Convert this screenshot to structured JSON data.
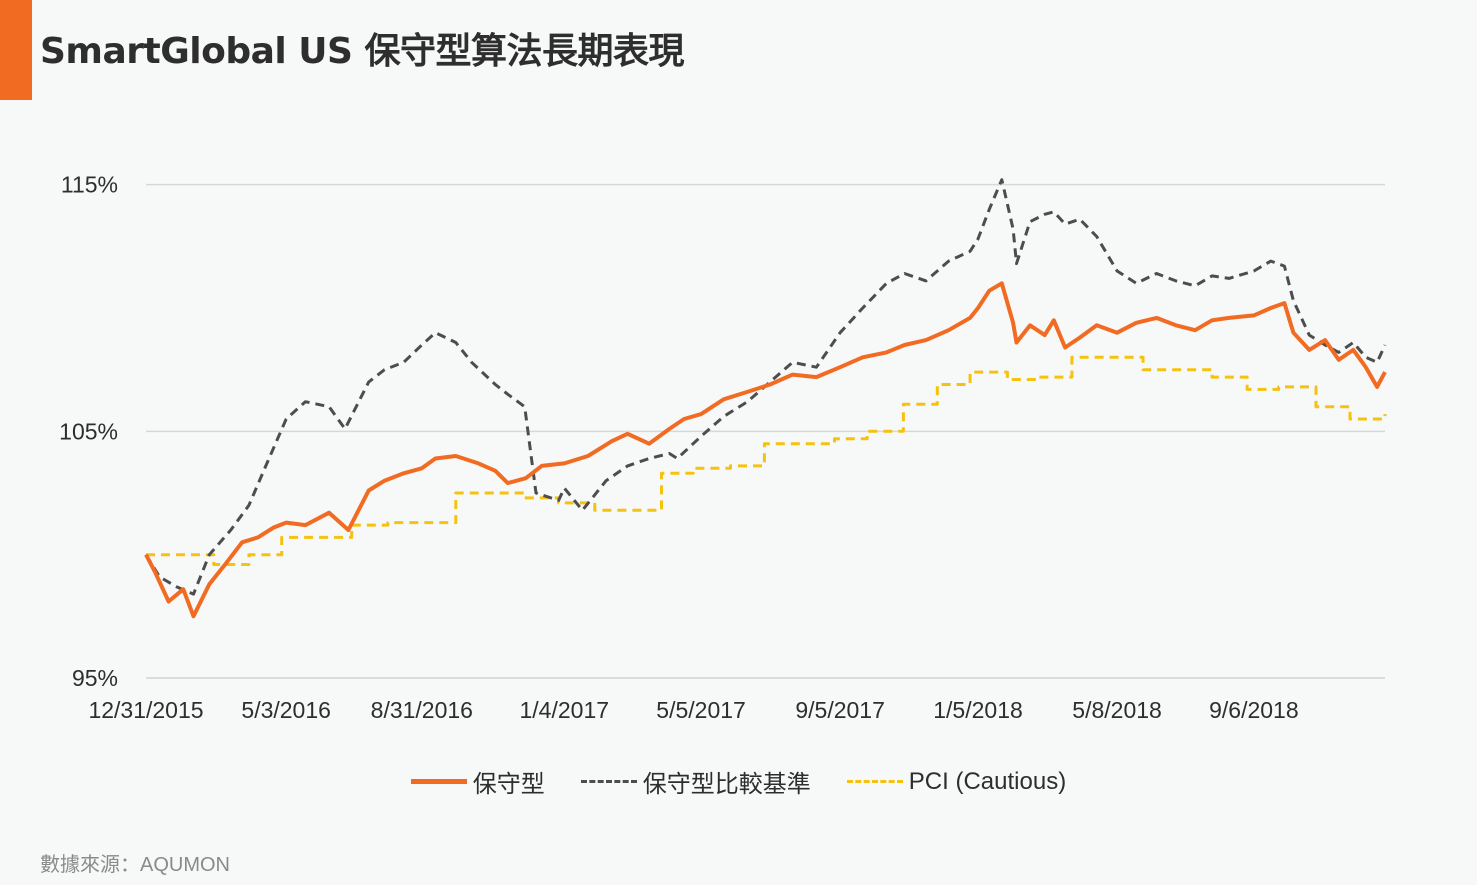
{
  "title": "SmartGlobal US 保守型算法長期表現",
  "source": "數據來源：AQUMON",
  "colors": {
    "accent": "#f26b22",
    "grid": "#d6d9dc",
    "text": "#2e2e2e"
  },
  "chart_data": {
    "type": "line",
    "title": "SmartGlobal US 保守型算法長期表現",
    "xlabel": "",
    "ylabel": "",
    "y_tick_labels": [
      "95%",
      "105%",
      "115%"
    ],
    "y_ticks": [
      95,
      105,
      115
    ],
    "ylim": [
      95,
      116
    ],
    "x_tick_labels": [
      "12/31/2015",
      "5/3/2016",
      "8/31/2016",
      "1/4/2017",
      "5/5/2017",
      "9/5/2017",
      "1/5/2018",
      "5/8/2018",
      "9/6/2018"
    ],
    "x_ticks": [
      "2015-12-31",
      "2016-05-03",
      "2016-08-31",
      "2017-01-04",
      "2017-05-05",
      "2017-09-05",
      "2018-01-05",
      "2018-05-08",
      "2018-09-06"
    ],
    "xlim": [
      "2015-12-31",
      "2018-12-31"
    ],
    "grid": true,
    "legend_position": "bottom",
    "series": [
      {
        "name": "保守型",
        "color": "#f26b22",
        "style": "solid",
        "points": [
          [
            "2015-12-31",
            100.0
          ],
          [
            "2016-01-08",
            99.3
          ],
          [
            "2016-01-20",
            98.1
          ],
          [
            "2016-02-02",
            98.6
          ],
          [
            "2016-02-11",
            97.5
          ],
          [
            "2016-02-25",
            98.8
          ],
          [
            "2016-03-10",
            99.6
          ],
          [
            "2016-03-25",
            100.5
          ],
          [
            "2016-04-08",
            100.7
          ],
          [
            "2016-04-22",
            101.1
          ],
          [
            "2016-05-03",
            101.3
          ],
          [
            "2016-05-20",
            101.2
          ],
          [
            "2016-06-10",
            101.7
          ],
          [
            "2016-06-27",
            101.0
          ],
          [
            "2016-07-15",
            102.6
          ],
          [
            "2016-07-29",
            103.0
          ],
          [
            "2016-08-15",
            103.3
          ],
          [
            "2016-08-31",
            103.5
          ],
          [
            "2016-09-12",
            103.9
          ],
          [
            "2016-09-30",
            104.0
          ],
          [
            "2016-10-20",
            103.7
          ],
          [
            "2016-11-04",
            103.4
          ],
          [
            "2016-11-15",
            102.9
          ],
          [
            "2016-12-01",
            103.1
          ],
          [
            "2016-12-15",
            103.6
          ],
          [
            "2017-01-04",
            103.7
          ],
          [
            "2017-01-25",
            104.0
          ],
          [
            "2017-02-15",
            104.6
          ],
          [
            "2017-03-01",
            104.9
          ],
          [
            "2017-03-20",
            104.5
          ],
          [
            "2017-04-07",
            105.1
          ],
          [
            "2017-04-20",
            105.5
          ],
          [
            "2017-05-05",
            105.7
          ],
          [
            "2017-05-25",
            106.3
          ],
          [
            "2017-06-15",
            106.6
          ],
          [
            "2017-07-05",
            106.9
          ],
          [
            "2017-07-25",
            107.3
          ],
          [
            "2017-08-15",
            107.2
          ],
          [
            "2017-09-05",
            107.6
          ],
          [
            "2017-09-25",
            108.0
          ],
          [
            "2017-10-16",
            108.2
          ],
          [
            "2017-11-01",
            108.5
          ],
          [
            "2017-11-20",
            108.7
          ],
          [
            "2017-12-10",
            109.1
          ],
          [
            "2017-12-29",
            109.6
          ],
          [
            "2018-01-05",
            110.0
          ],
          [
            "2018-01-15",
            110.7
          ],
          [
            "2018-01-26",
            111.0
          ],
          [
            "2018-02-05",
            109.4
          ],
          [
            "2018-02-08",
            108.6
          ],
          [
            "2018-02-20",
            109.3
          ],
          [
            "2018-03-05",
            108.9
          ],
          [
            "2018-03-13",
            109.5
          ],
          [
            "2018-03-23",
            108.4
          ],
          [
            "2018-04-05",
            108.8
          ],
          [
            "2018-04-20",
            109.3
          ],
          [
            "2018-05-08",
            109.0
          ],
          [
            "2018-05-25",
            109.4
          ],
          [
            "2018-06-12",
            109.6
          ],
          [
            "2018-06-29",
            109.3
          ],
          [
            "2018-07-16",
            109.1
          ],
          [
            "2018-07-31",
            109.5
          ],
          [
            "2018-08-15",
            109.6
          ],
          [
            "2018-09-06",
            109.7
          ],
          [
            "2018-09-21",
            110.0
          ],
          [
            "2018-10-03",
            110.2
          ],
          [
            "2018-10-11",
            109.0
          ],
          [
            "2018-10-25",
            108.3
          ],
          [
            "2018-11-08",
            108.7
          ],
          [
            "2018-11-20",
            107.9
          ],
          [
            "2018-12-03",
            108.3
          ],
          [
            "2018-12-14",
            107.6
          ],
          [
            "2018-12-24",
            106.8
          ],
          [
            "2018-12-31",
            107.4
          ]
        ]
      },
      {
        "name": "保守型比較基準",
        "color": "#4d4d4d",
        "style": "dashed",
        "points": [
          [
            "2015-12-31",
            100.0
          ],
          [
            "2016-01-12",
            99.1
          ],
          [
            "2016-01-27",
            98.7
          ],
          [
            "2016-02-11",
            98.4
          ],
          [
            "2016-02-25",
            100.0
          ],
          [
            "2016-03-15",
            101.0
          ],
          [
            "2016-03-31",
            102.0
          ],
          [
            "2016-04-15",
            103.6
          ],
          [
            "2016-05-03",
            105.5
          ],
          [
            "2016-05-20",
            106.2
          ],
          [
            "2016-06-10",
            106.0
          ],
          [
            "2016-06-24",
            105.1
          ],
          [
            "2016-07-15",
            107.0
          ],
          [
            "2016-07-29",
            107.5
          ],
          [
            "2016-08-15",
            107.8
          ],
          [
            "2016-08-31",
            108.5
          ],
          [
            "2016-09-12",
            109.0
          ],
          [
            "2016-09-30",
            108.6
          ],
          [
            "2016-10-14",
            107.8
          ],
          [
            "2016-11-04",
            106.9
          ],
          [
            "2016-11-15",
            106.5
          ],
          [
            "2016-11-30",
            106.0
          ],
          [
            "2016-12-10",
            102.5
          ],
          [
            "2016-12-30",
            102.2
          ],
          [
            "2017-01-04",
            102.7
          ],
          [
            "2017-01-20",
            101.8
          ],
          [
            "2017-02-10",
            103.0
          ],
          [
            "2017-03-01",
            103.6
          ],
          [
            "2017-03-20",
            103.9
          ],
          [
            "2017-04-07",
            104.1
          ],
          [
            "2017-04-14",
            103.9
          ],
          [
            "2017-05-05",
            104.8
          ],
          [
            "2017-05-25",
            105.6
          ],
          [
            "2017-06-15",
            106.2
          ],
          [
            "2017-07-05",
            107.0
          ],
          [
            "2017-07-25",
            107.8
          ],
          [
            "2017-08-15",
            107.6
          ],
          [
            "2017-09-05",
            109.0
          ],
          [
            "2017-09-25",
            110.0
          ],
          [
            "2017-10-16",
            111.0
          ],
          [
            "2017-11-01",
            111.4
          ],
          [
            "2017-11-20",
            111.1
          ],
          [
            "2017-12-10",
            111.9
          ],
          [
            "2017-12-29",
            112.3
          ],
          [
            "2018-01-05",
            112.8
          ],
          [
            "2018-01-15",
            114.0
          ],
          [
            "2018-01-26",
            115.2
          ],
          [
            "2018-02-05",
            113.2
          ],
          [
            "2018-02-08",
            111.8
          ],
          [
            "2018-02-20",
            113.5
          ],
          [
            "2018-03-05",
            113.8
          ],
          [
            "2018-03-13",
            113.9
          ],
          [
            "2018-03-23",
            113.4
          ],
          [
            "2018-04-05",
            113.6
          ],
          [
            "2018-04-20",
            112.9
          ],
          [
            "2018-05-08",
            111.5
          ],
          [
            "2018-05-25",
            111.0
          ],
          [
            "2018-06-12",
            111.4
          ],
          [
            "2018-06-29",
            111.1
          ],
          [
            "2018-07-16",
            110.9
          ],
          [
            "2018-07-31",
            111.3
          ],
          [
            "2018-08-15",
            111.2
          ],
          [
            "2018-09-06",
            111.5
          ],
          [
            "2018-09-21",
            111.9
          ],
          [
            "2018-10-03",
            111.7
          ],
          [
            "2018-10-11",
            110.3
          ],
          [
            "2018-10-25",
            108.9
          ],
          [
            "2018-11-08",
            108.5
          ],
          [
            "2018-11-20",
            108.2
          ],
          [
            "2018-12-03",
            108.6
          ],
          [
            "2018-12-14",
            108.0
          ],
          [
            "2018-12-24",
            107.8
          ],
          [
            "2018-12-31",
            108.5
          ]
        ]
      },
      {
        "name": "PCI (Cautious)",
        "color": "#f5c20f",
        "style": "dashed",
        "step": true,
        "points": [
          [
            "2015-12-31",
            100.0
          ],
          [
            "2016-02-29",
            99.6
          ],
          [
            "2016-03-31",
            100.0
          ],
          [
            "2016-04-29",
            100.7
          ],
          [
            "2016-06-30",
            101.2
          ],
          [
            "2016-08-01",
            101.3
          ],
          [
            "2016-09-30",
            102.5
          ],
          [
            "2016-11-30",
            102.3
          ],
          [
            "2016-12-30",
            102.1
          ],
          [
            "2017-01-31",
            101.8
          ],
          [
            "2017-03-31",
            103.3
          ],
          [
            "2017-04-28",
            103.5
          ],
          [
            "2017-05-31",
            103.6
          ],
          [
            "2017-06-30",
            104.5
          ],
          [
            "2017-08-31",
            104.7
          ],
          [
            "2017-09-29",
            105.0
          ],
          [
            "2017-10-31",
            106.1
          ],
          [
            "2017-11-30",
            106.9
          ],
          [
            "2017-12-29",
            107.4
          ],
          [
            "2018-01-31",
            107.1
          ],
          [
            "2018-02-28",
            107.2
          ],
          [
            "2018-03-29",
            108.0
          ],
          [
            "2018-05-31",
            107.5
          ],
          [
            "2018-06-29",
            107.5
          ],
          [
            "2018-07-31",
            107.2
          ],
          [
            "2018-08-31",
            106.7
          ],
          [
            "2018-09-28",
            106.8
          ],
          [
            "2018-10-31",
            106.0
          ],
          [
            "2018-11-30",
            105.5
          ],
          [
            "2018-12-31",
            105.7
          ]
        ]
      }
    ]
  }
}
